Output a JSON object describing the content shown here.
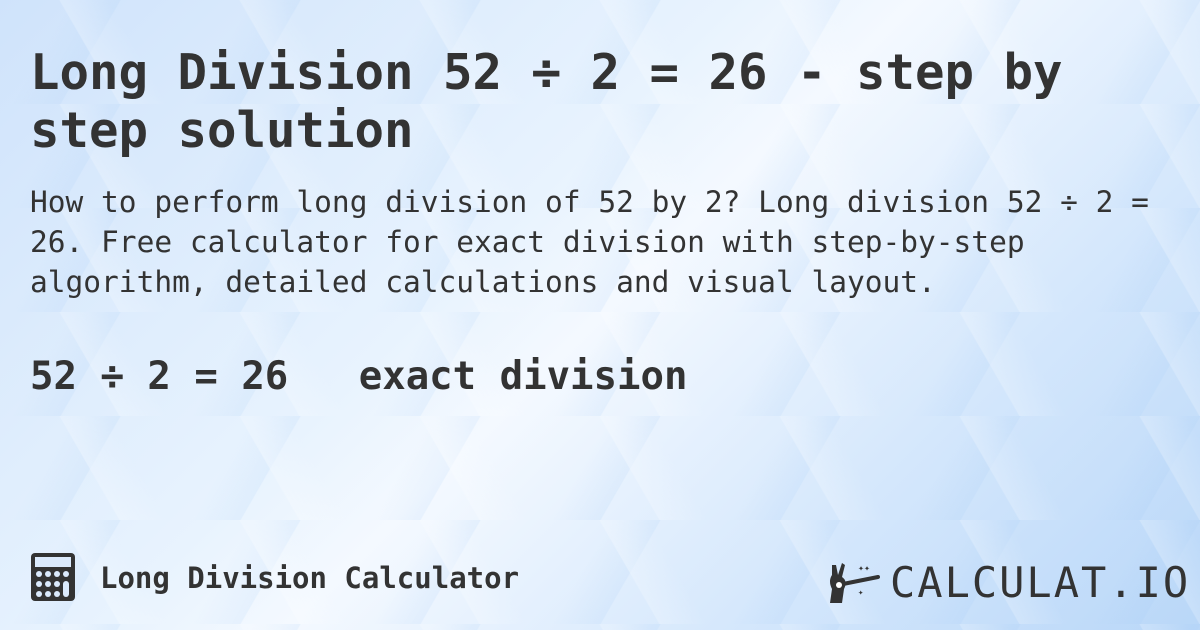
{
  "title": "Long Division 52 ÷ 2 = 26 - step by step solution",
  "description": "How to perform long division of 52 by 2? Long division 52 ÷ 2 = 26. Free calculator for exact division with step-by-step algorithm, detailed calculations and visual layout.",
  "result": {
    "equation": "52 ÷ 2 = 26",
    "type": "exact division"
  },
  "footer": {
    "calculator_label": "Long Division Calculator",
    "calculator_icon": "calculator-icon",
    "logo_text": "CALCULAT.IO",
    "logo_icon": "hand-magic-wand-icon"
  },
  "colors": {
    "text": "#333333",
    "background": "#d4e7fc"
  }
}
